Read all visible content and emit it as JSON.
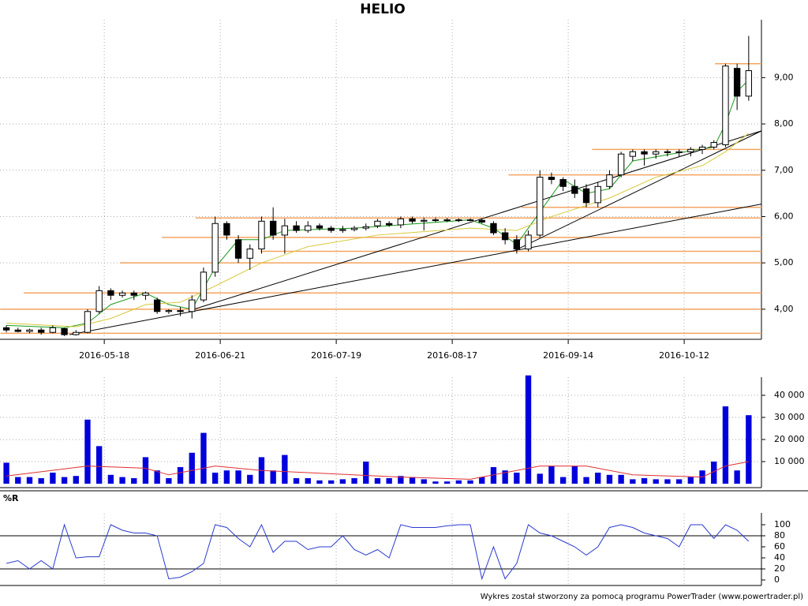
{
  "chart_data": {
    "type": "candlestick",
    "title": "HELIO",
    "footer": "Wykres został stworzony za pomocą programu PowerTrader (www.powertrader.pl)",
    "xlim": [
      -0.55,
      65.1
    ],
    "xticks": [
      {
        "value": 8.44,
        "label": "2016-05-18"
      },
      {
        "value": 18.44,
        "label": "2016-06-21"
      },
      {
        "value": 28.44,
        "label": "2016-07-19"
      },
      {
        "value": 38.44,
        "label": "2016-08-17"
      },
      {
        "value": 48.44,
        "label": "2016-09-14"
      },
      {
        "value": 58.44,
        "label": "2016-10-12"
      }
    ],
    "ylim": [
      3.35,
      10.25
    ],
    "yticks": [
      {
        "value": 4,
        "label": "4,00"
      },
      {
        "value": 5,
        "label": "5,00"
      },
      {
        "value": 6,
        "label": "6,00"
      },
      {
        "value": 7,
        "label": "7,00"
      },
      {
        "value": 8,
        "label": "8,00"
      },
      {
        "value": 9,
        "label": "9,00"
      }
    ],
    "grid": true,
    "up_color": "#ffffff",
    "down_color": "#000000",
    "candles": [
      [
        3.6,
        3.65,
        3.5,
        3.55
      ],
      [
        3.55,
        3.6,
        3.5,
        3.52
      ],
      [
        3.52,
        3.58,
        3.48,
        3.55
      ],
      [
        3.55,
        3.6,
        3.45,
        3.5
      ],
      [
        3.5,
        3.65,
        3.48,
        3.6
      ],
      [
        3.58,
        3.6,
        3.42,
        3.45
      ],
      [
        3.45,
        3.55,
        3.43,
        3.5
      ],
      [
        3.5,
        4.0,
        3.48,
        3.95
      ],
      [
        3.95,
        4.5,
        3.9,
        4.4
      ],
      [
        4.4,
        4.45,
        4.2,
        4.3
      ],
      [
        4.3,
        4.4,
        4.25,
        4.35
      ],
      [
        4.35,
        4.4,
        4.2,
        4.3
      ],
      [
        4.3,
        4.38,
        4.2,
        4.35
      ],
      [
        4.2,
        4.25,
        3.9,
        3.95
      ],
      [
        3.95,
        4.0,
        3.9,
        3.97
      ],
      [
        3.97,
        4.05,
        3.85,
        3.95
      ],
      [
        3.95,
        4.3,
        3.8,
        4.2
      ],
      [
        4.2,
        4.9,
        4.15,
        4.8
      ],
      [
        4.8,
        6.0,
        4.7,
        5.85
      ],
      [
        5.85,
        5.9,
        5.5,
        5.6
      ],
      [
        5.5,
        5.6,
        5.0,
        5.1
      ],
      [
        5.1,
        5.4,
        4.85,
        5.3
      ],
      [
        5.3,
        6.0,
        5.2,
        5.9
      ],
      [
        5.9,
        6.2,
        5.5,
        5.6
      ],
      [
        5.6,
        5.95,
        5.2,
        5.8
      ],
      [
        5.8,
        5.9,
        5.65,
        5.7
      ],
      [
        5.7,
        5.9,
        5.65,
        5.8
      ],
      [
        5.8,
        5.85,
        5.7,
        5.75
      ],
      [
        5.75,
        5.8,
        5.65,
        5.7
      ],
      [
        5.7,
        5.8,
        5.65,
        5.72
      ],
      [
        5.72,
        5.8,
        5.68,
        5.75
      ],
      [
        5.75,
        5.85,
        5.7,
        5.78
      ],
      [
        5.8,
        5.95,
        5.75,
        5.9
      ],
      [
        5.85,
        5.9,
        5.78,
        5.82
      ],
      [
        5.82,
        6.0,
        5.75,
        5.95
      ],
      [
        5.95,
        6.0,
        5.85,
        5.9
      ],
      [
        5.9,
        5.98,
        5.7,
        5.92
      ],
      [
        5.92,
        5.98,
        5.88,
        5.93
      ],
      [
        5.93,
        5.97,
        5.88,
        5.92
      ],
      [
        5.92,
        5.96,
        5.88,
        5.93
      ],
      [
        5.93,
        5.96,
        5.9,
        5.92
      ],
      [
        5.92,
        5.95,
        5.85,
        5.88
      ],
      [
        5.85,
        5.9,
        5.6,
        5.65
      ],
      [
        5.65,
        5.75,
        5.4,
        5.5
      ],
      [
        5.5,
        5.6,
        5.2,
        5.3
      ],
      [
        5.3,
        5.7,
        5.25,
        5.6
      ],
      [
        5.6,
        7.0,
        5.55,
        6.85
      ],
      [
        6.85,
        6.95,
        6.7,
        6.8
      ],
      [
        6.8,
        6.85,
        6.55,
        6.65
      ],
      [
        6.65,
        6.8,
        6.4,
        6.5
      ],
      [
        6.6,
        6.7,
        6.2,
        6.3
      ],
      [
        6.3,
        6.75,
        6.2,
        6.65
      ],
      [
        6.65,
        7.0,
        6.6,
        6.9
      ],
      [
        6.9,
        7.4,
        6.85,
        7.35
      ],
      [
        7.3,
        7.45,
        7.2,
        7.4
      ],
      [
        7.4,
        7.45,
        7.1,
        7.35
      ],
      [
        7.35,
        7.45,
        7.25,
        7.4
      ],
      [
        7.4,
        7.45,
        7.3,
        7.38
      ],
      [
        7.38,
        7.45,
        7.3,
        7.4
      ],
      [
        7.4,
        7.5,
        7.3,
        7.45
      ],
      [
        7.45,
        7.55,
        7.35,
        7.5
      ],
      [
        7.5,
        7.65,
        7.45,
        7.6
      ],
      [
        7.55,
        9.3,
        7.5,
        9.25
      ],
      [
        9.2,
        9.3,
        8.3,
        8.6
      ],
      [
        8.6,
        9.9,
        8.5,
        9.15
      ]
    ],
    "moving_averages": [
      {
        "color": "#1a9a1a",
        "x": [
          0,
          5,
          7,
          9,
          12,
          14,
          16,
          18,
          20,
          22,
          24,
          30,
          40,
          42,
          44,
          46,
          48,
          50,
          52,
          54,
          58,
          61,
          62,
          63,
          64
        ],
        "values": [
          3.65,
          3.6,
          3.7,
          4.1,
          4.35,
          4.1,
          4.0,
          4.9,
          5.5,
          5.5,
          5.7,
          5.75,
          5.93,
          5.75,
          5.4,
          6.1,
          6.8,
          6.5,
          6.6,
          7.2,
          7.38,
          7.5,
          8.0,
          8.7,
          8.95
        ]
      },
      {
        "color": "#d8c83a",
        "x": [
          0,
          6,
          9,
          12,
          15,
          18,
          22,
          26,
          32,
          40,
          44,
          47,
          52,
          56,
          60,
          62,
          64
        ],
        "values": [
          3.7,
          3.62,
          3.8,
          4.1,
          4.15,
          4.5,
          5.0,
          5.35,
          5.6,
          5.75,
          5.7,
          6.0,
          6.4,
          6.85,
          7.1,
          7.4,
          7.8
        ]
      }
    ],
    "levels_color": "#f4a460",
    "levels": [
      [
        61.1,
        9.3
      ],
      [
        50.5,
        7.45
      ],
      [
        43.3,
        6.9
      ],
      [
        44.4,
        6.2
      ],
      [
        16.3,
        5.97
      ],
      [
        13.4,
        5.55
      ],
      [
        21.9,
        5.25
      ],
      [
        9.8,
        5.0
      ],
      [
        1.5,
        4.35
      ],
      [
        -0.5,
        4.0
      ],
      [
        -0.5,
        3.48
      ]
    ],
    "trend_lines": [
      [
        5.44,
        3.45,
        65.1,
        6.27
      ],
      [
        15.8,
        3.97,
        65.1,
        7.85
      ],
      [
        43.7,
        5.25,
        65.1,
        7.85
      ]
    ],
    "volume": {
      "color": "#0000dd",
      "ma_color": "#e03030",
      "ylim": [
        0,
        48200
      ],
      "yticks": [
        {
          "value": 10000,
          "label": "10 000"
        },
        {
          "value": 20000,
          "label": "20 000"
        },
        {
          "value": 30000,
          "label": "30 000"
        },
        {
          "value": 40000,
          "label": "40 000"
        }
      ],
      "values": [
        9500,
        3000,
        3000,
        2500,
        5000,
        3000,
        3500,
        29000,
        17000,
        4000,
        3000,
        2500,
        12000,
        6000,
        2500,
        7500,
        14000,
        23000,
        5000,
        6000,
        6000,
        4000,
        12000,
        6000,
        13000,
        2500,
        2500,
        1500,
        1500,
        2000,
        2500,
        10000,
        2500,
        2500,
        3500,
        3000,
        2000,
        1000,
        1000,
        1500,
        1500,
        3000,
        7500,
        6000,
        5000,
        49000,
        4500,
        8000,
        3000,
        8000,
        3000,
        5000,
        4000,
        4000,
        2000,
        2500,
        2000,
        2000,
        2000,
        3000,
        6000,
        10000,
        35000,
        6000,
        31000
      ],
      "ma_x": [
        0,
        7,
        12,
        14,
        18,
        22,
        26,
        34,
        40,
        46,
        50,
        54,
        60,
        62,
        64
      ],
      "ma_values": [
        3500,
        8000,
        7000,
        4000,
        8000,
        6000,
        5000,
        3000,
        2000,
        8000,
        8000,
        4000,
        3000,
        8000,
        10000
      ]
    },
    "williams_r": {
      "label": "%R",
      "color": "#2a3ad0",
      "ylim": [
        -10,
        120
      ],
      "yticks": [
        0,
        20,
        40,
        60,
        80,
        100
      ],
      "bands": [
        20,
        80
      ],
      "values": [
        30,
        35,
        20,
        35,
        20,
        100,
        40,
        42,
        42,
        100,
        90,
        85,
        85,
        80,
        2,
        5,
        15,
        30,
        100,
        95,
        75,
        60,
        100,
        50,
        70,
        70,
        55,
        60,
        60,
        80,
        55,
        45,
        55,
        40,
        100,
        95,
        95,
        95,
        98,
        100,
        100,
        2,
        60,
        2,
        30,
        100,
        85,
        80,
        70,
        60,
        45,
        60,
        95,
        100,
        95,
        85,
        80,
        75,
        60,
        100,
        100,
        75,
        100,
        90,
        70
      ]
    }
  }
}
